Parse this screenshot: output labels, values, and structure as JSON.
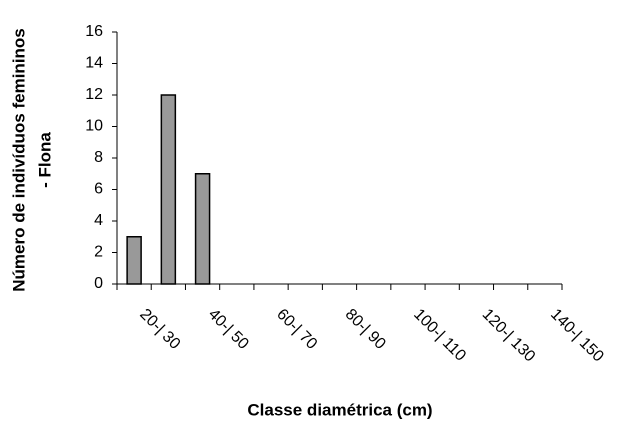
{
  "chart_data": {
    "type": "bar",
    "ylabel": [
      "Número de indivíduos femininos",
      "- Flona"
    ],
    "xlabel": "Classe diamétrica (cm)",
    "categories": [
      "20-| 30",
      null,
      "40-| 50",
      null,
      "60-| 70",
      null,
      "80-| 90",
      null,
      "100-| 110",
      null,
      "120-| 130",
      null,
      "140-| 150"
    ],
    "values": [
      3,
      12,
      7,
      0,
      0,
      0,
      0,
      0,
      0,
      0,
      0,
      0,
      0
    ],
    "color": "#999999",
    "ylim": [
      0,
      16
    ],
    "yticks": [
      0,
      2,
      4,
      6,
      8,
      10,
      12,
      14,
      16
    ],
    "grid": false
  }
}
